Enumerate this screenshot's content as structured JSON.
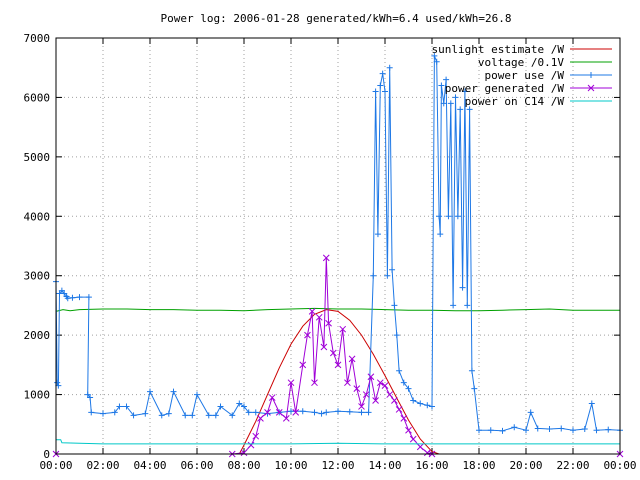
{
  "chart_data": {
    "type": "line",
    "title": "Power log: 2006-01-28 generated/kWh=6.4 used/kWh=26.8",
    "xlabel": "",
    "ylabel": "",
    "xlim": [
      0,
      24
    ],
    "ylim": [
      0,
      7000
    ],
    "x_ticks": [
      0,
      2,
      4,
      6,
      8,
      10,
      12,
      14,
      16,
      18,
      20,
      22,
      24
    ],
    "x_tick_labels": [
      "00:00",
      "02:00",
      "04:00",
      "06:00",
      "08:00",
      "10:00",
      "12:00",
      "14:00",
      "16:00",
      "18:00",
      "20:00",
      "22:00",
      "00:00"
    ],
    "y_ticks": [
      0,
      1000,
      2000,
      3000,
      4000,
      5000,
      6000,
      7000
    ],
    "y_tick_labels": [
      "0",
      "1000",
      "2000",
      "3000",
      "4000",
      "5000",
      "6000",
      "7000"
    ],
    "grid": true,
    "legend_position": "top-right",
    "series": [
      {
        "name": "sunlight estimate /W",
        "color": "#cc0000",
        "marker": "none",
        "x": [
          7.8,
          8.0,
          8.5,
          9.0,
          9.5,
          10.0,
          10.5,
          11.0,
          11.5,
          12.0,
          12.5,
          13.0,
          13.5,
          14.0,
          14.5,
          15.0,
          15.5,
          16.0,
          16.3
        ],
        "y": [
          0,
          150,
          550,
          1000,
          1450,
          1850,
          2150,
          2350,
          2430,
          2400,
          2250,
          2000,
          1680,
          1320,
          940,
          570,
          250,
          40,
          0
        ]
      },
      {
        "name": "voltage /0.1V",
        "color": "#00a000",
        "marker": "none",
        "x": [
          0,
          0.3,
          0.6,
          1,
          2,
          3,
          4,
          5,
          6,
          7,
          8,
          9,
          10,
          11,
          12,
          13,
          14,
          15,
          16,
          17,
          18,
          19,
          20,
          21,
          22,
          23,
          24
        ],
        "y": [
          2400,
          2430,
          2410,
          2430,
          2440,
          2440,
          2430,
          2430,
          2420,
          2420,
          2410,
          2430,
          2440,
          2450,
          2440,
          2440,
          2430,
          2420,
          2420,
          2410,
          2410,
          2420,
          2430,
          2440,
          2420,
          2420,
          2420
        ]
      },
      {
        "name": "power use /W",
        "color": "#1e78e6",
        "marker": "plus",
        "x": [
          0.0,
          0.05,
          0.1,
          0.15,
          0.25,
          0.35,
          0.45,
          0.5,
          0.7,
          1.0,
          1.4,
          1.35,
          1.45,
          1.5,
          2.0,
          2.5,
          2.7,
          3.0,
          3.3,
          3.8,
          4.0,
          4.5,
          4.8,
          5.0,
          5.5,
          5.8,
          6.0,
          6.5,
          6.8,
          7.0,
          7.5,
          7.8,
          8.0,
          8.2,
          8.5,
          9.0,
          9.5,
          10.0,
          10.5,
          11.0,
          11.3,
          11.5,
          12.0,
          12.5,
          13.0,
          13.3,
          13.5,
          13.6,
          13.7,
          13.8,
          13.9,
          14.0,
          14.1,
          14.2,
          14.3,
          14.4,
          14.5,
          14.6,
          14.8,
          15.0,
          15.2,
          15.5,
          15.8,
          16.0,
          16.1,
          16.2,
          16.3,
          16.35,
          16.4,
          16.5,
          16.6,
          16.7,
          16.8,
          16.9,
          17.0,
          17.1,
          17.2,
          17.3,
          17.4,
          17.5,
          17.6,
          17.7,
          17.8,
          18.0,
          18.5,
          19.0,
          19.5,
          20.0,
          20.2,
          20.5,
          21.0,
          21.5,
          22.0,
          22.5,
          22.8,
          23.0,
          23.5,
          24.0
        ],
        "y": [
          2900,
          1200,
          1150,
          2700,
          2750,
          2700,
          2650,
          2620,
          2630,
          2640,
          2640,
          1000,
          950,
          700,
          680,
          700,
          800,
          800,
          650,
          680,
          1050,
          650,
          680,
          1050,
          650,
          650,
          1000,
          650,
          650,
          800,
          650,
          850,
          800,
          700,
          700,
          680,
          700,
          720,
          720,
          700,
          680,
          700,
          720,
          710,
          700,
          700,
          3000,
          6100,
          3700,
          6200,
          6400,
          6100,
          3000,
          6500,
          3100,
          2500,
          2000,
          1400,
          1200,
          1100,
          900,
          850,
          820,
          800,
          6700,
          6600,
          4000,
          3700,
          6200,
          5900,
          6300,
          4000,
          5900,
          2500,
          6000,
          4000,
          5800,
          2800,
          6100,
          2500,
          5800,
          1400,
          1100,
          400,
          400,
          390,
          450,
          400,
          700,
          430,
          420,
          430,
          400,
          420,
          850,
          400,
          410,
          400
        ]
      },
      {
        "name": "power generated /W",
        "color": "#a000d8",
        "marker": "x",
        "x": [
          0,
          7.5,
          8.0,
          8.3,
          8.5,
          8.7,
          9.0,
          9.2,
          9.5,
          9.8,
          10.0,
          10.2,
          10.5,
          10.7,
          10.9,
          11.0,
          11.2,
          11.4,
          11.5,
          11.6,
          11.8,
          12.0,
          12.2,
          12.4,
          12.6,
          12.8,
          13.0,
          13.2,
          13.4,
          13.6,
          13.8,
          14.0,
          14.2,
          14.4,
          14.6,
          14.8,
          15.0,
          15.2,
          15.5,
          15.8,
          16.0,
          24.0
        ],
        "y": [
          0,
          0,
          20,
          150,
          300,
          600,
          700,
          950,
          700,
          600,
          1200,
          700,
          1500,
          2000,
          2400,
          1200,
          2300,
          1800,
          3300,
          2200,
          1700,
          1500,
          2100,
          1200,
          1600,
          1100,
          800,
          1000,
          1300,
          900,
          1200,
          1150,
          1000,
          900,
          750,
          600,
          400,
          250,
          120,
          20,
          0,
          0
        ]
      },
      {
        "name": "power on C14 /W",
        "color": "#00c8c8",
        "marker": "none",
        "x": [
          0,
          0.2,
          0.25,
          1.0,
          2.0,
          4.0,
          6.0,
          8.0,
          10.0,
          12.0,
          14.0,
          16.0,
          18.0,
          20.0,
          22.0,
          24.0
        ],
        "y": [
          240,
          240,
          190,
          180,
          170,
          170,
          170,
          170,
          170,
          180,
          170,
          170,
          170,
          170,
          170,
          170
        ]
      }
    ]
  }
}
